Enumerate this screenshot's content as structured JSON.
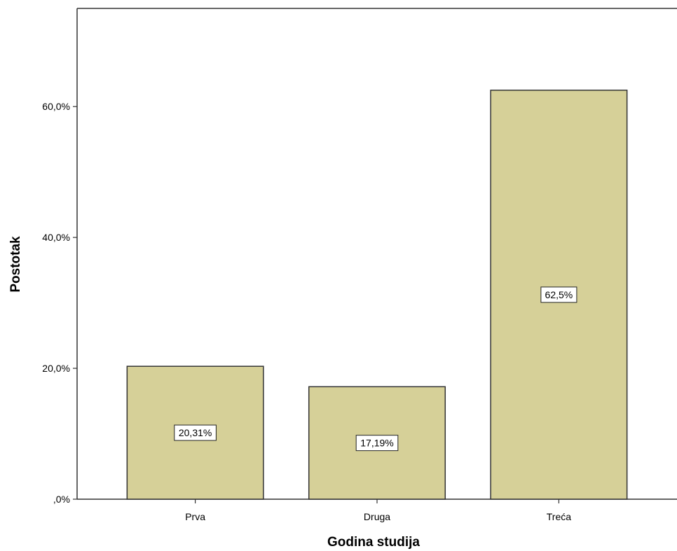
{
  "chart_data": {
    "type": "bar",
    "title": "",
    "xlabel": "Godina studija",
    "ylabel": "Postotak",
    "categories": [
      "Prva",
      "Druga",
      "Treća"
    ],
    "values": [
      20.31,
      17.19,
      62.5
    ],
    "data_labels": [
      "20,31%",
      "17,19%",
      "62,5%"
    ],
    "ylim": [
      0,
      75
    ],
    "yticks": [
      0,
      20,
      40,
      60
    ],
    "ytick_labels": [
      ",0%",
      "20,0%",
      "40,0%",
      "60,0%"
    ],
    "grid": false,
    "legend": "none",
    "colors": {
      "bar_fill": "#d6d098",
      "bar_stroke": "#333333",
      "axis": "#333333",
      "label_box_fill": "#ffffff"
    }
  }
}
